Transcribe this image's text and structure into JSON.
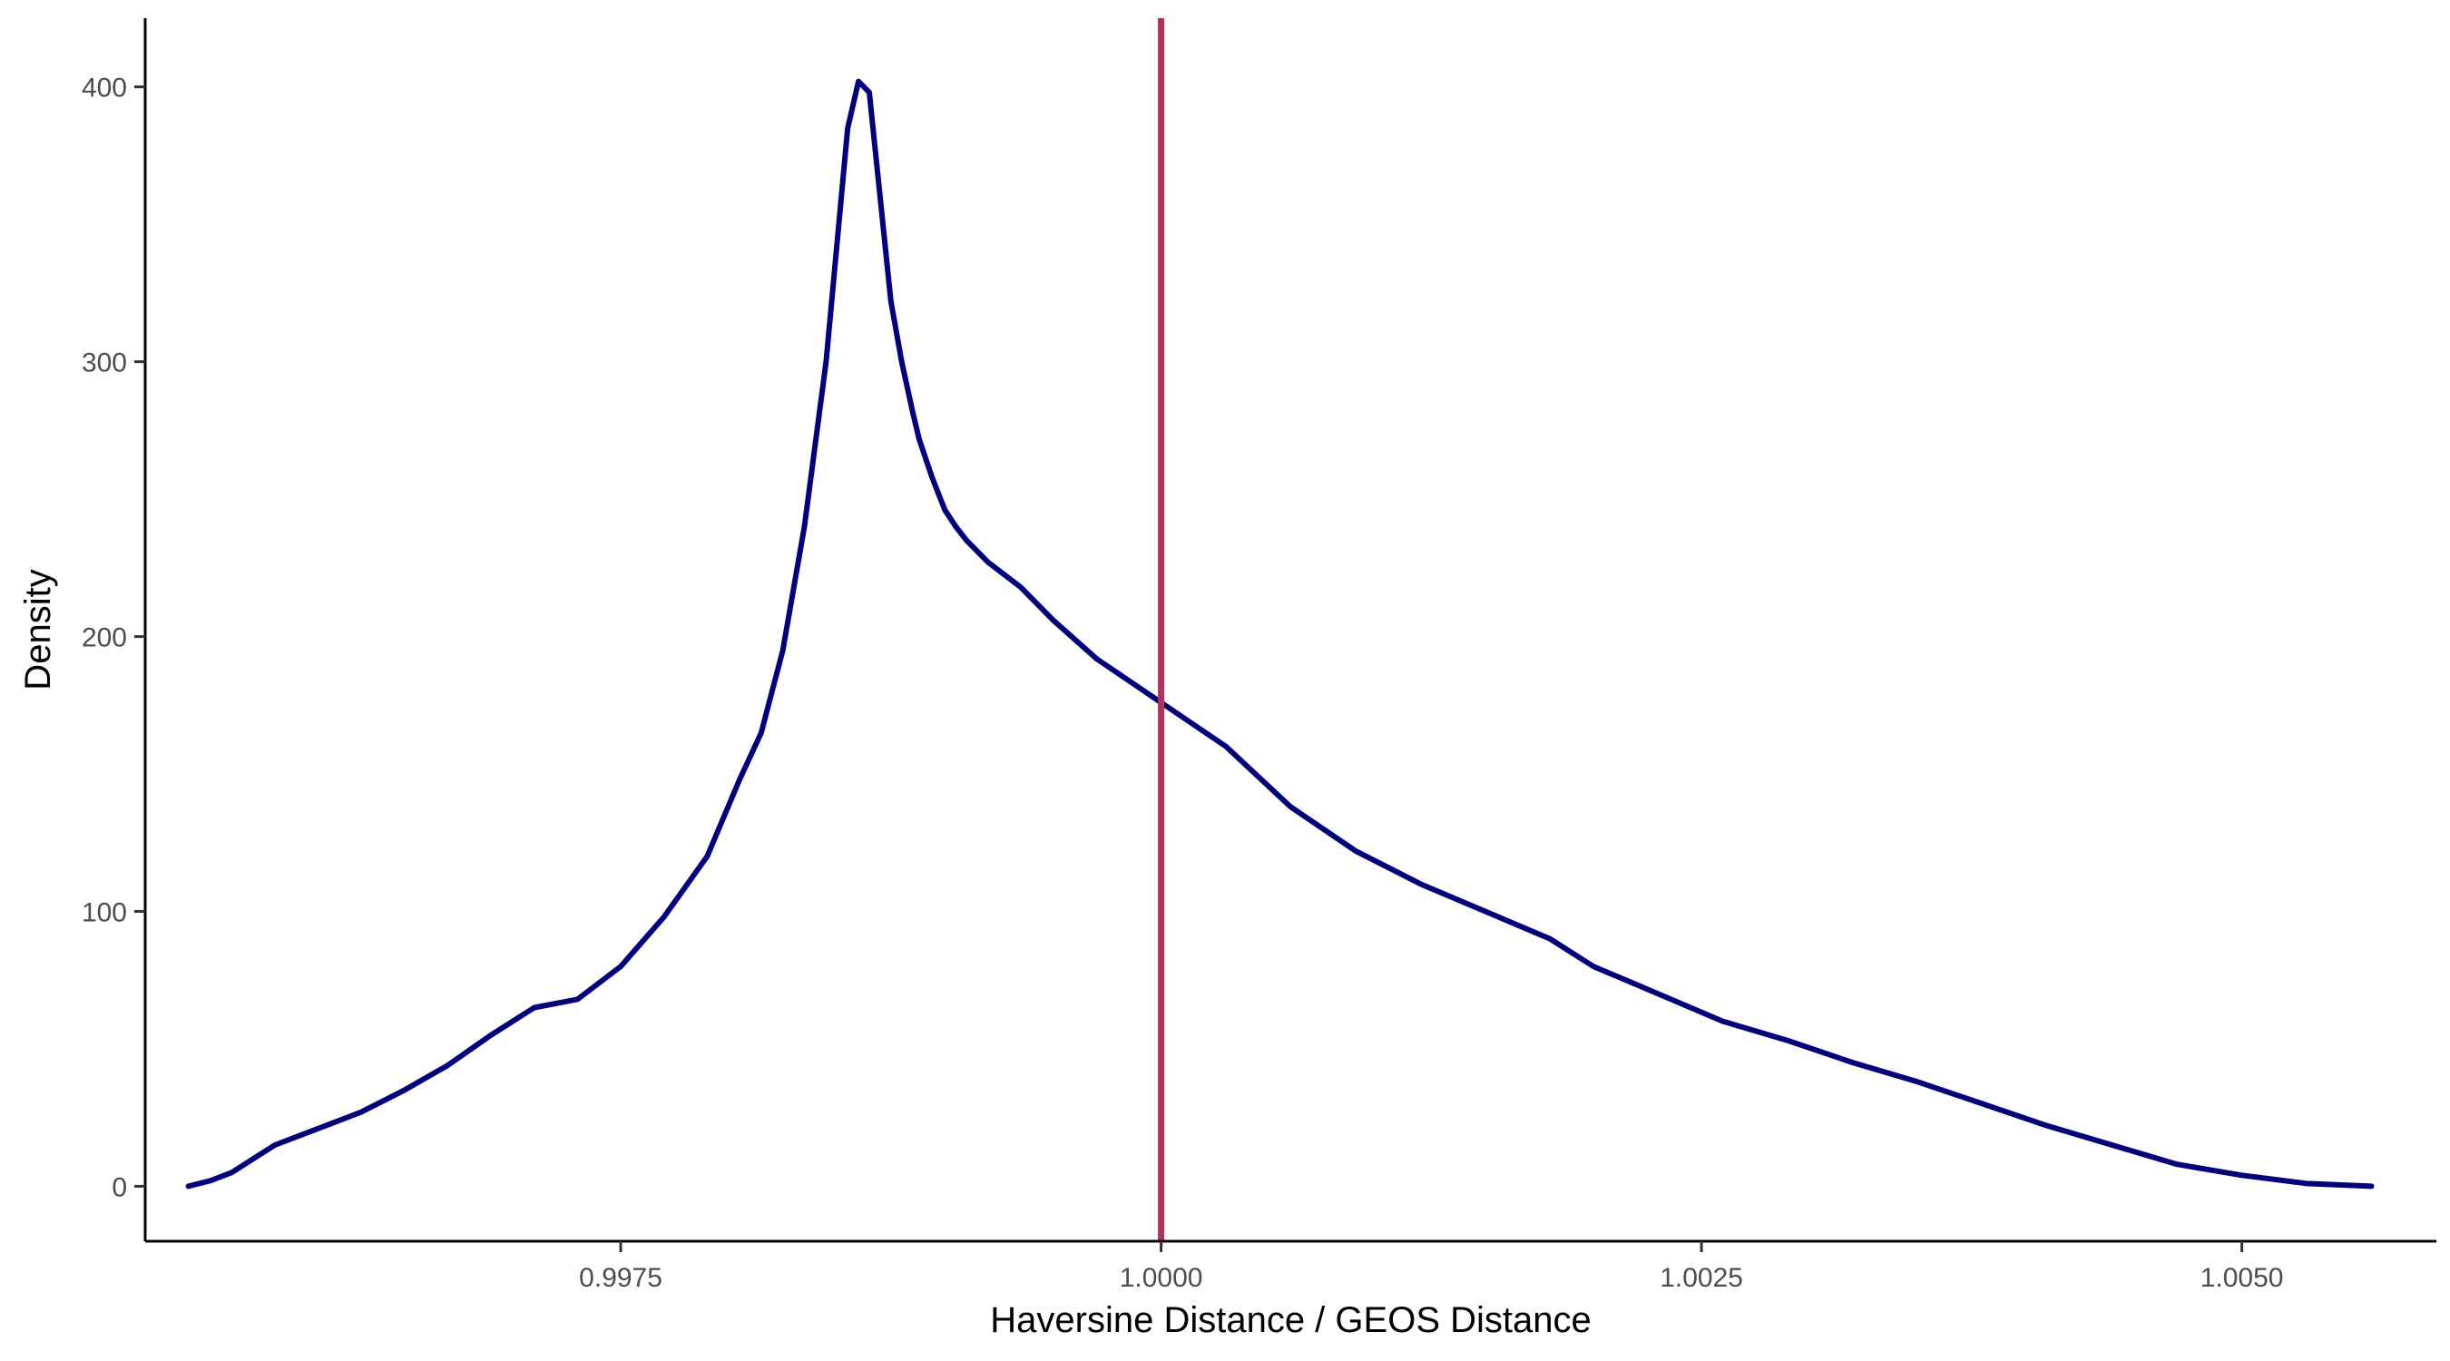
{
  "chart_data": {
    "type": "line",
    "title": "",
    "xlabel": "Haversine Distance / GEOS Distance",
    "ylabel": "Density",
    "xlim": [
      0.9953,
      1.0059
    ],
    "ylim": [
      -20,
      425
    ],
    "xticks": [
      0.9975,
      1.0,
      1.0025,
      1.005
    ],
    "xtick_labels": [
      "0.9975",
      "1.0000",
      "1.0025",
      "1.0050"
    ],
    "yticks": [
      0,
      100,
      200,
      300,
      400
    ],
    "ytick_labels": [
      "0",
      "100",
      "200",
      "300",
      "400"
    ],
    "grid": false,
    "legend": "none",
    "reference_line": {
      "orientation": "vertical",
      "x": 1.0,
      "color": "#B03060"
    },
    "series": [
      {
        "color": "#000080",
        "x": [
          0.9955,
          0.9956,
          0.9957,
          0.9958,
          0.9959,
          0.9961,
          0.9963,
          0.9965,
          0.9967,
          0.9969,
          0.9971,
          0.9973,
          0.9975,
          0.9977,
          0.9979,
          0.99805,
          0.99815,
          0.99825,
          0.99835,
          0.99845,
          0.99855,
          0.9986,
          0.99865,
          0.9987,
          0.99875,
          0.9988,
          0.99885,
          0.99888,
          0.99891,
          0.99894,
          0.99897,
          0.999,
          0.99905,
          0.9991,
          0.9992,
          0.99935,
          0.9995,
          0.9997,
          1.0,
          1.0003,
          1.0006,
          1.0009,
          1.0012,
          1.0015,
          1.0018,
          1.002,
          1.0023,
          1.0026,
          1.0029,
          1.0032,
          1.0035,
          1.0038,
          1.0041,
          1.0044,
          1.0047,
          1.005,
          1.0053,
          1.0056
        ],
        "y": [
          0,
          2,
          5,
          10,
          15,
          21,
          27,
          35,
          44,
          55,
          65,
          68,
          80,
          98,
          120,
          148,
          165,
          195,
          240,
          300,
          385,
          402,
          398,
          360,
          322,
          300,
          282,
          272,
          265,
          258,
          252,
          246,
          240,
          235,
          227,
          218,
          206,
          192,
          176,
          160,
          138,
          122,
          110,
          100,
          90,
          80,
          70,
          60,
          53,
          45,
          38,
          30,
          22,
          15,
          8,
          4,
          1,
          0
        ]
      }
    ]
  }
}
